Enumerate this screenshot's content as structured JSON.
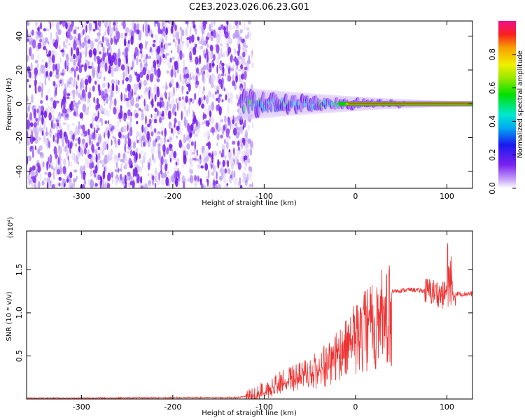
{
  "page": {
    "title": "C2E3.2023.026.06.23.G01"
  },
  "chart_data": [
    {
      "type": "heatmap",
      "title": "C2E3.2023.026.06.23.G01",
      "xlabel": "Height of straight line (km)",
      "ylabel": "Frequency (Hz)",
      "xlim": [
        -360,
        128
      ],
      "ylim": [
        -50,
        49
      ],
      "x_ticks": [
        -300,
        -200,
        -100,
        0,
        100
      ],
      "x_tick_labels": [
        "-300",
        "-200",
        "-100",
        "0",
        "100"
      ],
      "y_ticks": [
        40,
        20,
        0,
        -20,
        -40
      ],
      "y_tick_labels": [
        "40",
        "20",
        "0",
        "-20",
        "-40"
      ],
      "noise_region_x": [
        -360,
        -120
      ],
      "signal_region_x": [
        -125,
        128
      ],
      "signal_frequency_hz": 0,
      "colorbar": {
        "label": "Normalized spectral amplitude",
        "range": [
          0,
          1
        ],
        "ticks": [
          0.0,
          0.2,
          0.4,
          0.6,
          0.8
        ],
        "tick_labels": [
          "0.0",
          "0.2",
          "0.4",
          "0.6",
          "0.8"
        ]
      },
      "grid": false
    },
    {
      "type": "line",
      "xlabel": "Height of straight line (km)",
      "ylabel": "SNR (10 * v/v)",
      "multiplier": "(x10⁴)",
      "xlim": [
        -360,
        128
      ],
      "ylim": [
        0,
        1.95
      ],
      "x_ticks": [
        -300,
        -200,
        -100,
        0,
        100
      ],
      "x_tick_labels": [
        "-300",
        "-200",
        "-100",
        "0",
        "100"
      ],
      "y_ticks": [
        0.5,
        1.0,
        1.5
      ],
      "y_tick_labels": [
        "0.5",
        "1.0",
        "1.5"
      ],
      "color": "#ee3333",
      "x": [
        -360,
        -300,
        -200,
        -130,
        -110,
        -100,
        -90,
        -80,
        -70,
        -60,
        -50,
        -40,
        -30,
        -20,
        -10,
        0,
        10,
        20,
        30,
        40,
        60,
        80,
        90,
        95,
        100,
        102,
        105,
        110,
        128
      ],
      "y": [
        0.01,
        0.01,
        0.015,
        0.015,
        0.05,
        0.1,
        0.16,
        0.22,
        0.25,
        0.28,
        0.33,
        0.4,
        0.48,
        0.58,
        0.72,
        0.88,
        1.02,
        1.12,
        1.2,
        1.25,
        1.27,
        1.25,
        1.23,
        1.2,
        1.25,
        1.05,
        1.22,
        1.22,
        1.22
      ],
      "grid": false
    }
  ]
}
